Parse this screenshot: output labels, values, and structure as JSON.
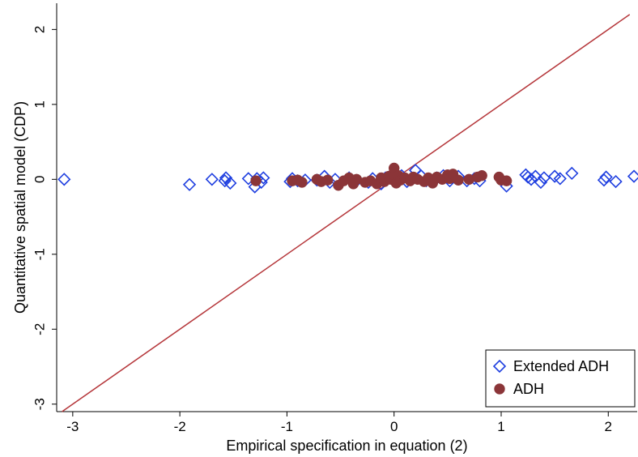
{
  "chart_data": {
    "type": "scatter",
    "xlabel": "Empirical specification in equation (2)",
    "ylabel": "Quantitative spatial model (CDP)",
    "xlim": [
      -3.15,
      2.27
    ],
    "ylim": [
      -3.1,
      2.35
    ],
    "xticks": [
      -3,
      -2,
      -1,
      0,
      1,
      2
    ],
    "yticks": [
      -3,
      -2,
      -1,
      0,
      1,
      2
    ],
    "grid": false,
    "legend_position": "bottom-right",
    "reference_line": {
      "type": "45-degree",
      "color": "#b5363a",
      "x": [
        -3.1,
        2.2
      ],
      "y": [
        -3.1,
        2.2
      ]
    },
    "series": [
      {
        "name": "Extended ADH",
        "marker": "hollow-diamond",
        "color": "#1f3fe0",
        "points": [
          [
            -3.08,
            0.0
          ],
          [
            -1.91,
            -0.07
          ],
          [
            -1.7,
            0.0
          ],
          [
            -1.58,
            -0.02
          ],
          [
            -1.57,
            0.02
          ],
          [
            -1.53,
            -0.05
          ],
          [
            -1.36,
            0.01
          ],
          [
            -1.3,
            -0.1
          ],
          [
            -1.28,
            0.01
          ],
          [
            -1.24,
            -0.04
          ],
          [
            -1.22,
            0.02
          ],
          [
            -0.97,
            -0.03
          ],
          [
            -0.95,
            0.01
          ],
          [
            -0.9,
            -0.02
          ],
          [
            -0.83,
            -0.01
          ],
          [
            -0.72,
            -0.01
          ],
          [
            -0.65,
            0.04
          ],
          [
            -0.6,
            -0.04
          ],
          [
            -0.55,
            0.0
          ],
          [
            -0.42,
            0.02
          ],
          [
            -0.35,
            -0.02
          ],
          [
            -0.24,
            -0.04
          ],
          [
            -0.2,
            0.01
          ],
          [
            -0.12,
            -0.06
          ],
          [
            -0.08,
            0.02
          ],
          [
            0.0,
            -0.02
          ],
          [
            0.07,
            0.05
          ],
          [
            0.12,
            -0.03
          ],
          [
            0.2,
            0.12
          ],
          [
            0.25,
            0.05
          ],
          [
            0.3,
            -0.02
          ],
          [
            0.4,
            0.02
          ],
          [
            0.46,
            0.05
          ],
          [
            0.52,
            -0.02
          ],
          [
            0.6,
            0.04
          ],
          [
            0.68,
            -0.02
          ],
          [
            0.75,
            0.01
          ],
          [
            0.8,
            -0.02
          ],
          [
            1.05,
            -0.09
          ],
          [
            1.23,
            0.06
          ],
          [
            1.25,
            0.03
          ],
          [
            1.28,
            0.0
          ],
          [
            1.32,
            0.04
          ],
          [
            1.37,
            -0.04
          ],
          [
            1.4,
            0.02
          ],
          [
            1.5,
            0.04
          ],
          [
            1.55,
            0.01
          ],
          [
            1.66,
            0.08
          ],
          [
            1.96,
            -0.01
          ],
          [
            1.98,
            0.03
          ],
          [
            2.07,
            -0.03
          ],
          [
            2.24,
            0.04
          ]
        ]
      },
      {
        "name": "ADH",
        "marker": "filled-circle",
        "color": "#8b3538",
        "points": [
          [
            -1.29,
            -0.02
          ],
          [
            -0.95,
            -0.02
          ],
          [
            -0.9,
            -0.01
          ],
          [
            -0.86,
            -0.04
          ],
          [
            -0.72,
            0.0
          ],
          [
            -0.68,
            -0.03
          ],
          [
            -0.62,
            -0.01
          ],
          [
            -0.52,
            -0.08
          ],
          [
            -0.47,
            -0.02
          ],
          [
            -0.42,
            0.02
          ],
          [
            -0.35,
            0.0
          ],
          [
            -0.27,
            -0.04
          ],
          [
            -0.22,
            -0.02
          ],
          [
            -0.16,
            -0.06
          ],
          [
            -0.12,
            0.02
          ],
          [
            -0.09,
            -0.03
          ],
          [
            -0.05,
            0.04
          ],
          [
            -0.03,
            0.0
          ],
          [
            -0.01,
            0.07
          ],
          [
            0.0,
            0.15
          ],
          [
            0.02,
            -0.05
          ],
          [
            0.04,
            0.05
          ],
          [
            0.06,
            -0.01
          ],
          [
            0.1,
            0.02
          ],
          [
            0.15,
            -0.02
          ],
          [
            0.18,
            0.03
          ],
          [
            0.22,
            0.0
          ],
          [
            0.28,
            -0.03
          ],
          [
            0.32,
            0.02
          ],
          [
            0.36,
            -0.05
          ],
          [
            0.4,
            0.03
          ],
          [
            0.45,
            0.0
          ],
          [
            0.5,
            0.06
          ],
          [
            0.52,
            0.01
          ],
          [
            0.55,
            0.07
          ],
          [
            0.6,
            -0.01
          ],
          [
            0.7,
            0.0
          ],
          [
            0.78,
            0.03
          ],
          [
            0.82,
            0.05
          ],
          [
            0.98,
            0.03
          ],
          [
            1.0,
            -0.01
          ],
          [
            1.05,
            -0.02
          ],
          [
            -0.38,
            -0.06
          ]
        ]
      }
    ]
  }
}
